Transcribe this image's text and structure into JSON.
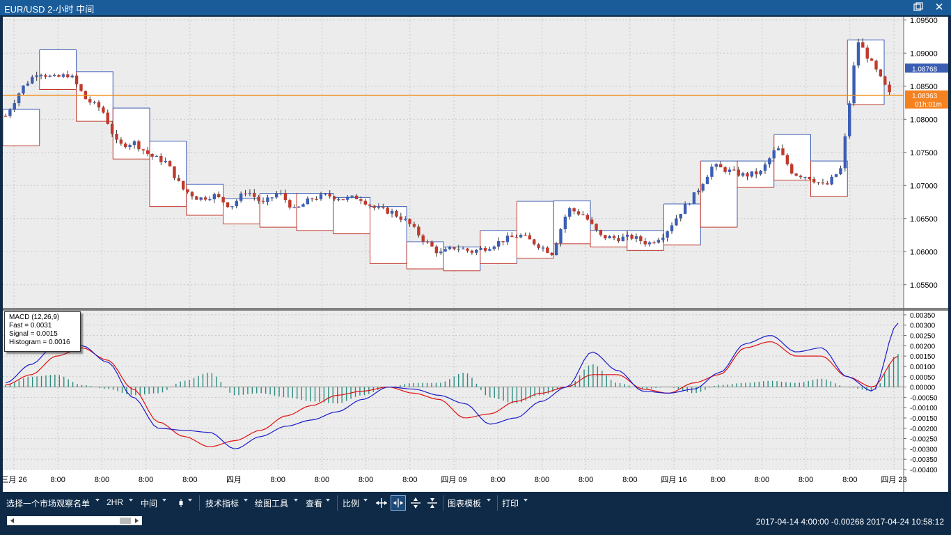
{
  "window": {
    "title": "EUR/USD 2-小时 中间",
    "close_glyph": "✕"
  },
  "chart_data": [
    {
      "type": "candlestick",
      "title": "EUR/USD 2-小时 中间",
      "y_axis_ticks": [
        "1.09500",
        "1.09000",
        "1.08500",
        "1.08000",
        "1.07500",
        "1.07000",
        "1.06500",
        "1.06000",
        "1.05500"
      ],
      "ylim": [
        1.0515,
        1.0955
      ],
      "last_price_label": "1.08768",
      "current_price_label": "1.08363",
      "countdown_label": "01h:01m",
      "horizontal_line": 1.08363,
      "x_axis_labels": [
        "三月 26",
        "8:00",
        "8:00",
        "8:00",
        "8:00",
        "四月",
        "8:00",
        "8:00",
        "8:00",
        "8:00",
        "四月 09",
        "8:00",
        "8:00",
        "8:00",
        "8:00",
        "四月 16",
        "8:00",
        "8:00",
        "8:00",
        "8:00",
        "四月 23"
      ],
      "close_path": [
        1.0805,
        1.0847,
        1.0872,
        1.0862,
        1.0868,
        1.083,
        1.0815,
        1.076,
        1.0765,
        1.0745,
        1.0735,
        1.0695,
        1.068,
        1.0685,
        1.0668,
        1.0693,
        1.0672,
        1.069,
        1.0662,
        1.068,
        1.0685,
        1.068,
        1.0682,
        1.0665,
        1.066,
        1.0645,
        1.0618,
        1.0597,
        1.0607,
        1.06,
        1.0607,
        1.0618,
        1.0625,
        1.0612,
        1.0598,
        1.0665,
        1.0655,
        1.0623,
        1.062,
        1.0622,
        1.0612,
        1.0627,
        1.066,
        1.069,
        1.073,
        1.0722,
        1.0715,
        1.072,
        1.0758,
        1.0718,
        1.0713,
        1.0698,
        1.0726,
        1.092,
        1.088,
        1.0838
      ],
      "daily_range_boxes": [
        {
          "high": 1.0815,
          "low": 1.076
        },
        {
          "high": 1.0905,
          "low": 1.0845
        },
        {
          "high": 1.0872,
          "low": 1.0797
        },
        {
          "high": 1.0817,
          "low": 1.074
        },
        {
          "high": 1.0767,
          "low": 1.0668
        },
        {
          "high": 1.0702,
          "low": 1.0655
        },
        {
          "high": 1.068,
          "low": 1.0642
        },
        {
          "high": 1.0688,
          "low": 1.0637
        },
        {
          "high": 1.0688,
          "low": 1.0632
        },
        {
          "high": 1.0682,
          "low": 1.0627
        },
        {
          "high": 1.0668,
          "low": 1.0582
        },
        {
          "high": 1.0615,
          "low": 1.0574
        },
        {
          "high": 1.0607,
          "low": 1.0571
        },
        {
          "high": 1.0632,
          "low": 1.0582
        },
        {
          "high": 1.0676,
          "low": 1.059
        },
        {
          "high": 1.0677,
          "low": 1.0612
        },
        {
          "high": 1.0632,
          "low": 1.0607
        },
        {
          "high": 1.0632,
          "low": 1.0602
        },
        {
          "high": 1.0672,
          "low": 1.061
        },
        {
          "high": 1.0737,
          "low": 1.0637
        },
        {
          "high": 1.0737,
          "low": 1.0697
        },
        {
          "high": 1.0777,
          "low": 1.0708
        },
        {
          "high": 1.0737,
          "low": 1.0683
        },
        {
          "high": 1.092,
          "low": 1.0822
        }
      ]
    },
    {
      "type": "macd",
      "info": {
        "name": "MACD (12,26,9)",
        "fast": "Fast = 0.0031",
        "signal": "Signal = 0.0015",
        "histogram": "Histogram = 0.0016"
      },
      "y_axis_ticks": [
        "0.00350",
        "0.00300",
        "0.00250",
        "0.00200",
        "0.00150",
        "0.00100",
        "0.00050",
        "0.00000",
        "-0.00050",
        "-0.00100",
        "-0.00150",
        "-0.00200",
        "-0.00250",
        "-0.00300",
        "-0.00350",
        "-0.00400"
      ],
      "ylim": [
        -0.004,
        0.0037
      ],
      "fast_series": [
        0.0002,
        0.0011,
        0.0021,
        0.002,
        0.0012,
        -0.0005,
        -0.002,
        -0.0021,
        -0.0022,
        -0.003,
        -0.0024,
        -0.0019,
        -0.0016,
        -0.0012,
        -0.0006,
        0.0,
        -0.0001,
        -0.0004,
        -0.0008,
        -0.0018,
        -0.0015,
        -0.0007,
        0.0,
        0.0017,
        0.0008,
        -0.0002,
        -0.0003,
        -0.0001,
        0.0007,
        0.0021,
        0.0025,
        0.0017,
        0.0019,
        0.0005,
        -0.0002,
        0.0031
      ],
      "signal_series": [
        0.0001,
        0.0006,
        0.0015,
        0.0019,
        0.0013,
        -0.0001,
        -0.0017,
        -0.0024,
        -0.0029,
        -0.0026,
        -0.0021,
        -0.0014,
        -0.0009,
        -0.0004,
        -0.0002,
        0.0,
        -0.0003,
        -0.0006,
        -0.0015,
        -0.0013,
        -0.0007,
        -0.0003,
        0.0,
        0.0006,
        0.0006,
        -0.0001,
        -0.0003,
        0.0002,
        0.0006,
        0.0019,
        0.0022,
        0.0015,
        0.0015,
        0.0005,
        0.0,
        0.0015
      ],
      "histogram": [
        0.0001,
        0.0005,
        0.0006,
        0.0001,
        -0.0001,
        -0.0004,
        -0.0003,
        0.0003,
        0.0007,
        -0.0004,
        -0.0003,
        -0.0005,
        -0.0007,
        -0.0008,
        -0.0004,
        0.0,
        0.0002,
        0.0002,
        0.0007,
        -0.0005,
        -0.0008,
        -0.0004,
        0.0,
        0.0011,
        0.0002,
        -0.0001,
        0.0,
        -0.0003,
        0.0001,
        0.0002,
        0.0003,
        0.0002,
        0.0004,
        0.0,
        -0.0002,
        0.0016
      ]
    }
  ],
  "toolbar": {
    "watchlist": "选择一个市场观察名单",
    "timeframe": "2HR",
    "price_type": "中间",
    "indicators": "技术指标",
    "drawing": "绘图工具",
    "view": "查看",
    "scale": "比例",
    "templates": "图表模板",
    "print": "打印"
  },
  "status": {
    "text": "2017-04-14 4:00:00  -0.00268   2017-04-24 10:58:12"
  },
  "colors": {
    "bull": "#3b5eb5",
    "bear": "#c0392b",
    "fast_line": "#1a1acc",
    "signal_line": "#e01010",
    "hist": "#2e8b7f",
    "box_high": "#3b5eb5",
    "box_low": "#c0392b",
    "price_line": "#f0901a",
    "titlebar": "#1a5c9a"
  },
  "icons": [
    "candle-type-icon",
    "pan-icon",
    "zoom-x-icon",
    "zoom-y-icon",
    "zoom-y-out-icon",
    "restore-window-icon",
    "close-icon"
  ]
}
